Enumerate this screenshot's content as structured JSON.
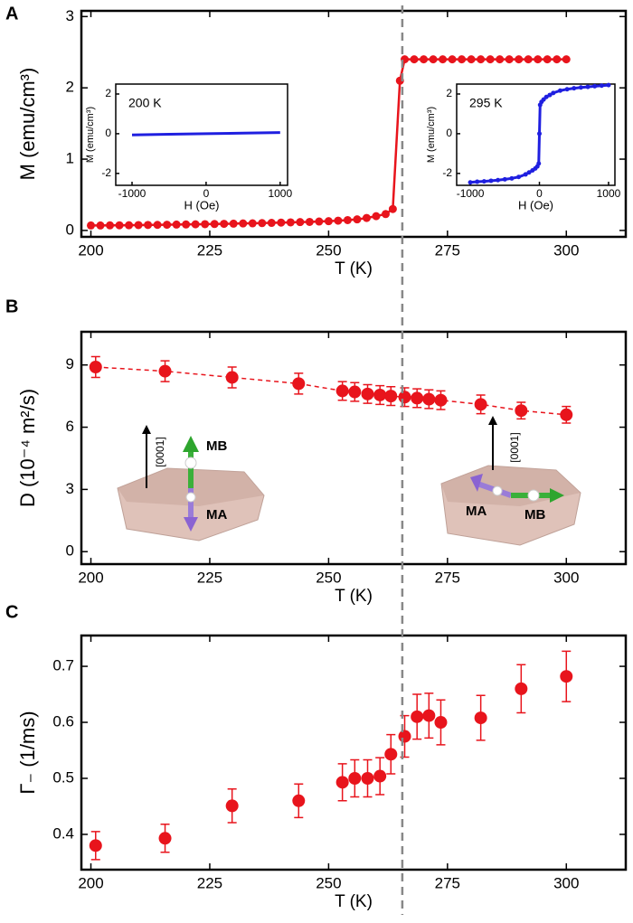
{
  "chart_data": [
    {
      "type": "line",
      "panel": "A",
      "x_label": "T (K)",
      "y_label": "M (emu/cm³)",
      "xlim": [
        198,
        312.5
      ],
      "ylim": [
        -0.09,
        3.08
      ],
      "xticks": [
        200,
        225,
        250,
        275,
        300
      ],
      "yticks": [
        0,
        1,
        2,
        3
      ],
      "vline": 265.5,
      "x": [
        200,
        202,
        204,
        206,
        208,
        210,
        212,
        214,
        216,
        218,
        220,
        222,
        224,
        226,
        228,
        230,
        232,
        234,
        236,
        238,
        240,
        242,
        244,
        246,
        248,
        250,
        252,
        254,
        256,
        258,
        260,
        262,
        263.5,
        265,
        266,
        268,
        270,
        272,
        274,
        276,
        278,
        280,
        282,
        284,
        286,
        288,
        290,
        292,
        294,
        296,
        298,
        300
      ],
      "series": [
        {
          "color": "#e8141c",
          "markers": true,
          "values": [
            0.07,
            0.07,
            0.071,
            0.072,
            0.073,
            0.075,
            0.077,
            0.078,
            0.08,
            0.082,
            0.084,
            0.086,
            0.088,
            0.09,
            0.093,
            0.095,
            0.098,
            0.1,
            0.103,
            0.106,
            0.11,
            0.113,
            0.117,
            0.12,
            0.125,
            0.13,
            0.137,
            0.145,
            0.155,
            0.175,
            0.2,
            0.23,
            0.3,
            2.1,
            2.4,
            2.4,
            2.4,
            2.4,
            2.4,
            2.4,
            2.4,
            2.4,
            2.4,
            2.4,
            2.4,
            2.4,
            2.4,
            2.4,
            2.4,
            2.4,
            2.4,
            2.4
          ]
        }
      ]
    },
    {
      "type": "line",
      "label": "200 K",
      "x_label": "H (Oe)",
      "y_label": "M (emu/cm³)",
      "xlim": [
        -1220,
        1100
      ],
      "ylim": [
        -2.6,
        2.5
      ],
      "xticks": [
        -1000,
        0,
        1000
      ],
      "yticks": [
        -2,
        0,
        2
      ],
      "x": [
        -1000,
        -500,
        0,
        500,
        1000
      ],
      "series": [
        {
          "color": "#1f1fe0",
          "markers": false,
          "values": [
            -0.06,
            -0.03,
            0,
            0.03,
            0.06
          ]
        }
      ]
    },
    {
      "type": "line",
      "label": "295 K",
      "x_label": "H (Oe)",
      "y_label": "M (emu/cm³)",
      "xlim": [
        -1197,
        1092
      ],
      "ylim": [
        -2.6,
        2.5
      ],
      "xticks": [
        -1000,
        0,
        1000
      ],
      "yticks": [
        -2,
        0,
        2
      ],
      "x": [
        -1000,
        -900,
        -800,
        -700,
        -600,
        -500,
        -400,
        -300,
        -200,
        -150,
        -100,
        -60,
        -30,
        -10,
        0,
        10,
        30,
        60,
        100,
        150,
        200,
        300,
        400,
        500,
        600,
        700,
        800,
        900,
        1000
      ],
      "series": [
        {
          "color": "#1f1fe0",
          "markers": true,
          "values": [
            -2.45,
            -2.42,
            -2.4,
            -2.37,
            -2.34,
            -2.3,
            -2.25,
            -2.18,
            -2.05,
            -1.95,
            -1.85,
            -1.75,
            -1.65,
            -1.5,
            0,
            1.45,
            1.6,
            1.72,
            1.85,
            1.95,
            2.05,
            2.17,
            2.24,
            2.29,
            2.33,
            2.36,
            2.39,
            2.42,
            2.45
          ]
        }
      ]
    },
    {
      "type": "scatter",
      "panel": "B",
      "x_label": "T (K)",
      "y_label": "D  (10⁻⁴ m²/s)",
      "line_style": "dashed",
      "xlim": [
        198,
        312.5
      ],
      "ylim": [
        -0.6,
        10.6
      ],
      "xticks": [
        200,
        225,
        250,
        275,
        300
      ],
      "yticks": [
        0,
        3,
        6,
        9
      ],
      "annotations": [
        "[0001]",
        "MB",
        "MA",
        "[0001]",
        "MA",
        "MB"
      ],
      "x": [
        201,
        215.6,
        229.7,
        243.7,
        252.9,
        255.5,
        258.2,
        260.8,
        263.1,
        266,
        268.6,
        271.1,
        273.6,
        282,
        290.5,
        300
      ],
      "series": [
        {
          "color": "#e8141c",
          "values": [
            8.9,
            8.7,
            8.4,
            8.1,
            7.75,
            7.7,
            7.6,
            7.55,
            7.5,
            7.45,
            7.4,
            7.35,
            7.3,
            7.1,
            6.8,
            6.6
          ],
          "errors": [
            0.5,
            0.5,
            0.5,
            0.5,
            0.45,
            0.45,
            0.45,
            0.45,
            0.45,
            0.45,
            0.45,
            0.45,
            0.45,
            0.45,
            0.4,
            0.4
          ]
        }
      ]
    },
    {
      "type": "scatter",
      "panel": "C",
      "x_label": "T (K)",
      "y_label": "Γ₋ (1/ms)",
      "xlim": [
        198,
        312.5
      ],
      "ylim": [
        0.337,
        0.755
      ],
      "xticks": [
        200,
        225,
        250,
        275,
        300
      ],
      "yticks": [
        0.4,
        0.5,
        0.6,
        0.7
      ],
      "x": [
        201,
        215.6,
        229.7,
        243.7,
        252.9,
        255.5,
        258.2,
        260.8,
        263.1,
        266,
        268.6,
        271.1,
        273.6,
        282,
        290.5,
        300
      ],
      "series": [
        {
          "color": "#e8141c",
          "values": [
            0.38,
            0.393,
            0.451,
            0.46,
            0.493,
            0.5,
            0.5,
            0.504,
            0.543,
            0.575,
            0.61,
            0.612,
            0.6,
            0.608,
            0.66,
            0.682
          ],
          "errors": [
            0.025,
            0.025,
            0.03,
            0.03,
            0.033,
            0.033,
            0.033,
            0.033,
            0.035,
            0.037,
            0.04,
            0.04,
            0.04,
            0.04,
            0.043,
            0.045
          ]
        }
      ]
    }
  ]
}
